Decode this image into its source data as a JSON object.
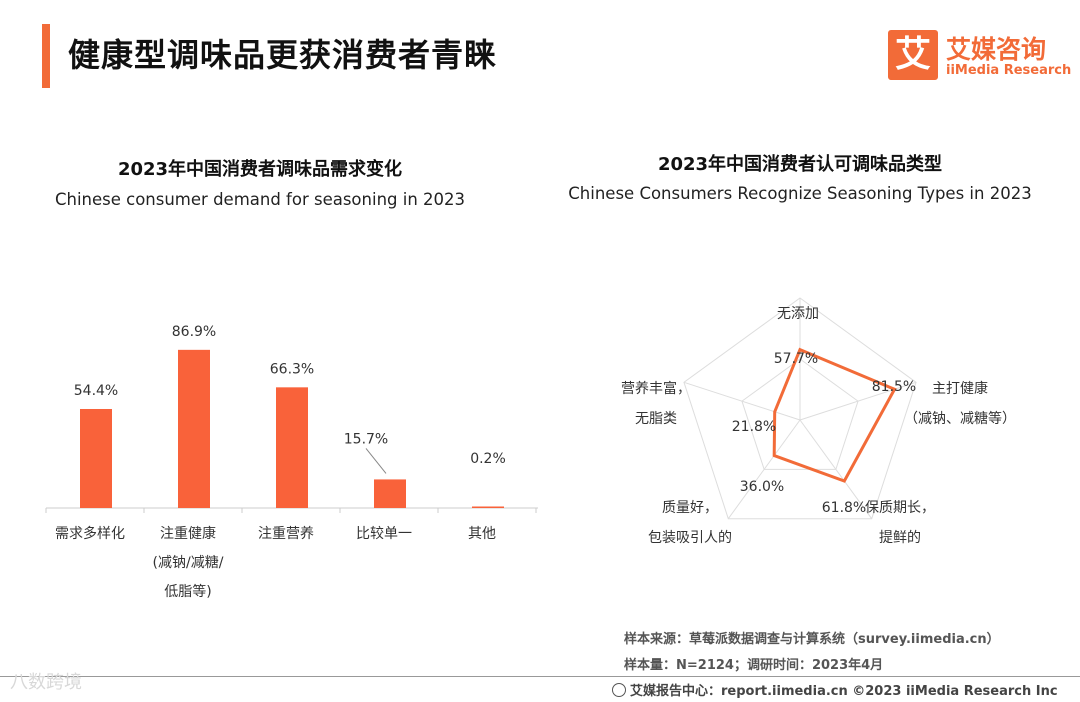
{
  "header": {
    "title": "健康型调味品更获消费者青睐",
    "logo_mark": "艾",
    "logo_cn": "艾媒咨询",
    "logo_en": "iiMedia Research"
  },
  "colors": {
    "accent": "#f26b38",
    "bar": "#f9623a",
    "radar_line": "#f26b38",
    "grid": "#dddddd"
  },
  "chart_data": [
    {
      "type": "bar",
      "title": "2023年中国消费者调味品需求变化",
      "subtitle": "Chinese consumer demand for seasoning in 2023",
      "categories": [
        "需求多样化",
        "注重健康\n(减钠/减糖/\n低脂等)",
        "注重营养",
        "比较单一",
        "其他"
      ],
      "values": [
        54.4,
        86.9,
        66.3,
        15.7,
        0.2
      ],
      "value_labels": [
        "54.4%",
        "86.9%",
        "66.3%",
        "15.7%",
        "0.2%"
      ],
      "unit": "%",
      "ylim": [
        0,
        100
      ],
      "xlabel": "",
      "ylabel": "",
      "grid": false
    },
    {
      "type": "radar",
      "title": "2023年中国消费者认可调味品类型",
      "subtitle": "Chinese Consumers Recognize Seasoning Types in 2023",
      "categories": [
        "无添加",
        "主打健康\n（减钠、减糖等）",
        "保质期长，\n提鲜的",
        "质量好，\n包装吸引人的",
        "营养丰富，\n无脂类"
      ],
      "values": [
        57.7,
        81.5,
        61.8,
        36.0,
        21.8
      ],
      "value_labels": [
        "57.7%",
        "81.5%",
        "61.8%",
        "36.0%",
        "21.8%"
      ],
      "unit": "%",
      "rmax": 100,
      "grid": true
    }
  ],
  "notes": {
    "source": "样本来源：草莓派数据调查与计算系统（survey.iimedia.cn）",
    "sample": "样本量：N=2124；调研时间：2023年4月",
    "footer": "艾媒报告中心：report.iimedia.cn  ©2023  iiMedia Research  Inc"
  },
  "watermark": "八数跨境"
}
